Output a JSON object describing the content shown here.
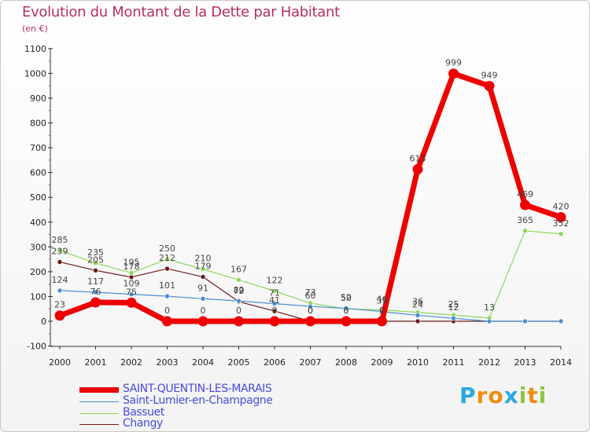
{
  "header": {
    "title": "Evolution du Montant de la Dette par Habitant",
    "subtitle": "(en €)"
  },
  "brand": {
    "letters": [
      "P",
      "r",
      "o",
      "x",
      "i",
      "t",
      "i"
    ],
    "colors": [
      "#2aa9e0",
      "#f28c0f",
      "#f28c0f",
      "#2aa9e0",
      "#8cc63f",
      "#f28c0f",
      "#8cc63f"
    ]
  },
  "chart_data": {
    "type": "line",
    "title": "Evolution du Montant de la Dette par Habitant",
    "ylabel": "(en €)",
    "xlabel": "",
    "ylim": [
      -100,
      1100
    ],
    "yticks": [
      -100,
      0,
      100,
      200,
      300,
      400,
      500,
      600,
      700,
      800,
      900,
      1000,
      1100
    ],
    "grid": false,
    "legend_position": "bottom-left",
    "x": [
      "2000",
      "2001",
      "2002",
      "2003",
      "2004",
      "2005",
      "2006",
      "2007",
      "2008",
      "2009",
      "2010",
      "2011",
      "2012",
      "2013",
      "2014"
    ],
    "series": [
      {
        "name": "Changy",
        "color": "#6b1a1a",
        "values": [
          239,
          205,
          178,
          212,
          179,
          79,
          41,
          0,
          0,
          0,
          0,
          0,
          0,
          0,
          0
        ],
        "labels": [
          "239",
          "205",
          "178",
          "212",
          "179",
          "79",
          "41",
          "0",
          "0",
          "0",
          "",
          "",
          "",
          "",
          ""
        ]
      },
      {
        "name": "Bassuet",
        "color": "#8ed65b",
        "values": [
          285,
          235,
          195,
          250,
          210,
          167,
          122,
          73,
          50,
          46,
          36,
          25,
          13,
          365,
          352
        ],
        "labels": [
          "285",
          "235",
          "195",
          "250",
          "210",
          "167",
          "122",
          "73",
          "50",
          "46",
          "36",
          "25",
          "13",
          "365",
          "352"
        ]
      },
      {
        "name": "Saint-Lumier-en-Champagne",
        "color": "#4a8fd0",
        "values": [
          124,
          117,
          109,
          101,
          91,
          82,
          71,
          60,
          52,
          39,
          24,
          12,
          0,
          0,
          0
        ],
        "labels": [
          "124",
          "117",
          "109",
          "101",
          "91",
          "82",
          "71",
          "60",
          "52",
          "39",
          "24",
          "12",
          "",
          "",
          ""
        ]
      },
      {
        "name": "SAINT-QUENTIN-LES-MARAIS",
        "color": "#ee0000",
        "values": [
          23,
          76,
          75,
          0,
          0,
          0,
          0,
          0,
          0,
          0,
          613,
          999,
          949,
          469,
          420
        ],
        "labels": [
          "23",
          "76",
          "75",
          "0",
          "0",
          "0",
          "0",
          "0",
          "0",
          "0",
          "613",
          "999",
          "949",
          "469",
          "420"
        ]
      }
    ]
  },
  "legend": [
    {
      "label": "SAINT-QUENTIN-LES-MARAIS",
      "color": "#ee0000",
      "weight": 7
    },
    {
      "label": "Saint-Lumier-en-Champagne",
      "color": "#4a8fd0",
      "weight": 1
    },
    {
      "label": "Bassuet",
      "color": "#8ed65b",
      "weight": 1
    },
    {
      "label": "Changy",
      "color": "#6b1a1a",
      "weight": 1
    }
  ]
}
